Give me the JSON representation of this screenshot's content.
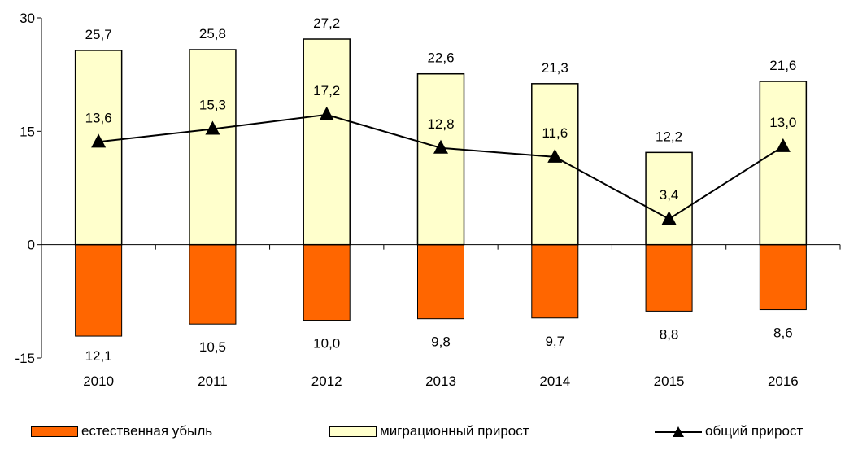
{
  "chart_data": {
    "type": "bar",
    "categories": [
      "2010",
      "2011",
      "2012",
      "2013",
      "2014",
      "2015",
      "2016"
    ],
    "series": [
      {
        "name": "естественная убыль",
        "kind": "bar",
        "color": "#ff6600",
        "values": [
          -12.1,
          -10.5,
          -10.0,
          -9.8,
          -9.7,
          -8.8,
          -8.6
        ],
        "labels": [
          "12,1",
          "10,5",
          "10,0",
          "9,8",
          "9,7",
          "8,8",
          "8,6"
        ]
      },
      {
        "name": "миграционный прирост",
        "kind": "bar",
        "color": "#ffffcc",
        "values": [
          25.7,
          25.8,
          27.2,
          22.6,
          21.3,
          12.2,
          21.6
        ],
        "labels": [
          "25,7",
          "25,8",
          "27,2",
          "22,6",
          "21,3",
          "12,2",
          "21,6"
        ]
      },
      {
        "name": "общий прирост",
        "kind": "line",
        "color": "#000000",
        "values": [
          13.6,
          15.3,
          17.2,
          12.8,
          11.6,
          3.4,
          13.0
        ],
        "labels": [
          "13,6",
          "15,3",
          "17,2",
          "12,8",
          "11,6",
          "3,4",
          "13,0"
        ]
      }
    ],
    "ylim": [
      -15,
      30
    ],
    "yticks": [
      -15,
      0,
      15,
      30
    ],
    "ytick_labels": [
      "-15",
      "0",
      "15",
      "30"
    ],
    "grid": false,
    "legend_position": "bottom"
  },
  "legend": {
    "natural_decline": "естественная убыль",
    "migration_growth": "миграционный прирост",
    "total_growth": "общий прирост"
  }
}
